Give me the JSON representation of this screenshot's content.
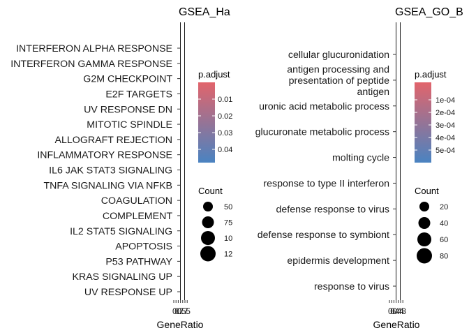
{
  "chart_data": [
    {
      "type": "scatter",
      "title": "GSEA_Ha",
      "xlabel": "GeneRatio",
      "ylabel": "",
      "x_tick_labels": [
        "0.",
        "0.",
        "0.",
        "7",
        "5",
        "7",
        "5"
      ],
      "categories": [
        "INTERFERON ALPHA RESPONSE",
        "INTERFERON GAMMA RESPONSE",
        "G2M CHECKPOINT",
        "E2F TARGETS",
        "UV RESPONSE DN",
        "MITOTIC SPINDLE",
        "ALLOGRAFT REJECTION",
        "INFLAMMATORY RESPONSE",
        "IL6 JAK STAT3 SIGNALING",
        "TNFA SIGNALING VIA NFKB",
        "COAGULATION",
        "COMPLEMENT",
        "IL2 STAT5 SIGNALING",
        "APOPTOSIS",
        "P53 PATHWAY",
        "KRAS SIGNALING UP",
        "UV RESPONSE UP"
      ],
      "color_legend": {
        "title": "p.adjust",
        "tick_labels": [
          "0.01",
          "0.02",
          "0.03",
          "0.04"
        ],
        "low_color": "#e2646b",
        "high_color": "#4a83c1"
      },
      "size_legend": {
        "title": "Count",
        "labels": [
          "50",
          "75",
          "10",
          "12"
        ]
      }
    },
    {
      "type": "scatter",
      "title": "GSEA_GO_B",
      "xlabel": "GeneRatio",
      "ylabel": "",
      "x_tick_labels": [
        "0.",
        "0.",
        "0.",
        "4",
        "4",
        "4",
        "8"
      ],
      "categories": [
        [
          "cellular glucuronidation"
        ],
        [
          "antigen processing and",
          "presentation of peptide",
          "antigen"
        ],
        [
          "uronic acid metabolic process"
        ],
        [
          "glucuronate metabolic process"
        ],
        [
          "molting cycle"
        ],
        [
          "response to type II interferon"
        ],
        [
          "defense response to virus"
        ],
        [
          "defense response to symbiont"
        ],
        [
          "epidermis development"
        ],
        [
          "response to virus"
        ]
      ],
      "color_legend": {
        "title": "p.adjust",
        "tick_labels": [
          "1e-04",
          "2e-04",
          "3e-04",
          "4e-04",
          "5e-04"
        ],
        "low_color": "#e2646b",
        "high_color": "#4a83c1"
      },
      "size_legend": {
        "title": "Count",
        "labels": [
          "20",
          "40",
          "60",
          "80"
        ]
      }
    }
  ]
}
